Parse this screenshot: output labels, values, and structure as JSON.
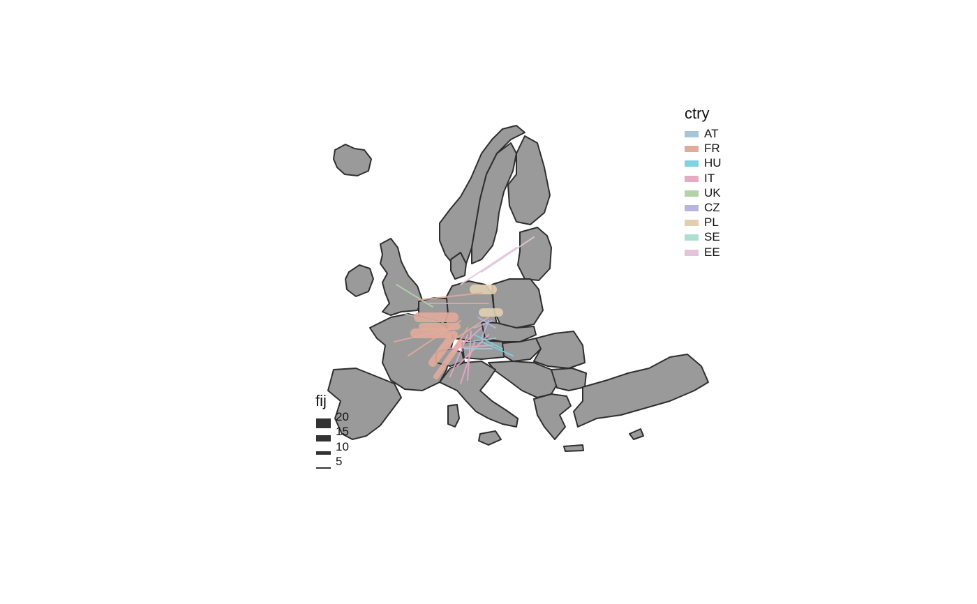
{
  "legends": {
    "color": {
      "title": "ctry",
      "items": [
        {
          "label": "AT",
          "color": "#a6c6d8"
        },
        {
          "label": "FR",
          "color": "#e1ab9c"
        },
        {
          "label": "HU",
          "color": "#7fd2e0"
        },
        {
          "label": "IT",
          "color": "#e6aac3"
        },
        {
          "label": "UK",
          "color": "#b2d3a9"
        },
        {
          "label": "CZ",
          "color": "#b8b6e0"
        },
        {
          "label": "PL",
          "color": "#e1cfb1"
        },
        {
          "label": "SE",
          "color": "#aee0cf"
        },
        {
          "label": "EE",
          "color": "#e2c5d8"
        }
      ]
    },
    "size": {
      "title": "fij",
      "items": [
        {
          "label": "20",
          "value": 20
        },
        {
          "label": "15",
          "value": 15
        },
        {
          "label": "10",
          "value": 10
        },
        {
          "label": "5",
          "value": 5
        }
      ]
    }
  },
  "map": {
    "land_color": "#9a9a9a",
    "border_color": "#2e2e2e",
    "background": "#ffffff"
  }
}
